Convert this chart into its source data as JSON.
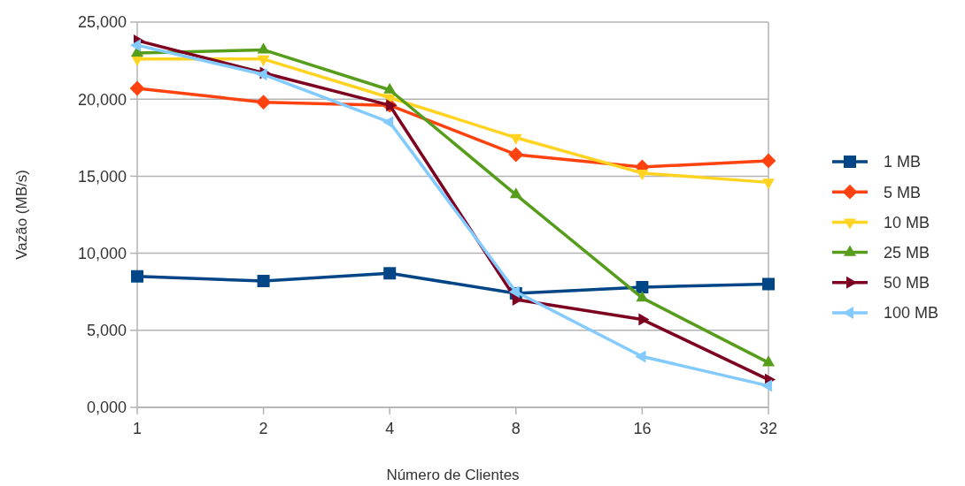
{
  "chart_data": {
    "type": "line",
    "xlabel": "Número de Clientes",
    "ylabel": "Vazão (MB/s)",
    "categories": [
      "1",
      "2",
      "4",
      "8",
      "16",
      "32"
    ],
    "ylim": [
      0,
      25000
    ],
    "yticks": [
      {
        "value": 0,
        "label": "0,000"
      },
      {
        "value": 5000,
        "label": "5,000"
      },
      {
        "value": 10000,
        "label": "10,000"
      },
      {
        "value": 15000,
        "label": "15,000"
      },
      {
        "value": 20000,
        "label": "20,000"
      },
      {
        "value": 25000,
        "label": "25,000"
      }
    ],
    "grid": "y",
    "legend": "right",
    "series": [
      {
        "name": "1 MB",
        "color": "#004586",
        "marker": "square",
        "values": [
          8500,
          8200,
          8700,
          7400,
          7800,
          8000
        ]
      },
      {
        "name": "5 MB",
        "color": "#ff420e",
        "marker": "diamond",
        "values": [
          20700,
          19800,
          19600,
          16400,
          15600,
          16000
        ]
      },
      {
        "name": "10 MB",
        "color": "#ffd320",
        "marker": "triangle-down",
        "values": [
          22600,
          22600,
          20100,
          17500,
          15200,
          14600
        ]
      },
      {
        "name": "25 MB",
        "color": "#579d1c",
        "marker": "triangle",
        "values": [
          23000,
          23200,
          20600,
          13800,
          7100,
          2900
        ]
      },
      {
        "name": "50 MB",
        "color": "#7e0021",
        "marker": "triangle-right",
        "values": [
          23800,
          21700,
          19600,
          7000,
          5700,
          1800
        ]
      },
      {
        "name": "100 MB",
        "color": "#83caff",
        "marker": "triangle-left",
        "values": [
          23500,
          21600,
          18500,
          7500,
          3300,
          1400
        ]
      }
    ]
  }
}
